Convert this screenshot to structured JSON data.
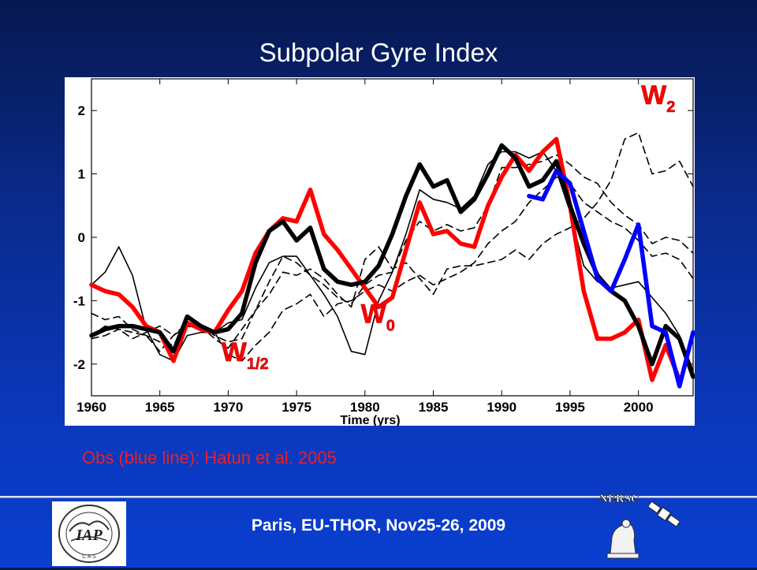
{
  "slide": {
    "title": "Subpolar Gyre Index",
    "footnote": "Obs (blue line): Hatun et al. 2005",
    "footer": "Paris, EU-THOR, Nov25-26, 2009",
    "logos": {
      "left": {
        "icon": "iap-cas-emblem-icon",
        "text": "IAP"
      },
      "right": {
        "icon": "nersc-bear-satellite-icon",
        "text": "NERSC"
      }
    }
  },
  "chart_data": {
    "type": "line",
    "title": "Subpolar Gyre Index",
    "xlabel": "Time (yrs)",
    "ylabel": "",
    "xlim": [
      1960,
      2004
    ],
    "ylim": [
      -2.5,
      2.5
    ],
    "xticks": [
      1960,
      1965,
      1970,
      1975,
      1980,
      1985,
      1990,
      1995,
      2000
    ],
    "yticks": [
      -2,
      -1,
      0,
      1,
      2
    ],
    "annotations": [
      {
        "label": "W",
        "sub": "2",
        "x": 2000.2,
        "y": 2.1
      },
      {
        "label": "W",
        "sub": "0",
        "x": 1979.7,
        "y": -1.35
      },
      {
        "label": "W",
        "sub": "1/2",
        "x": 1969.5,
        "y": -1.95
      }
    ],
    "colors": {
      "red": "#ff0000",
      "blue": "#0000ff",
      "black": "#000000"
    },
    "series": [
      {
        "color": "#ff0000",
        "width": 5.5,
        "style": "solid",
        "x": [
          1960,
          1961,
          1962,
          1963,
          1964,
          1965,
          1966,
          1967,
          1968,
          1969,
          1970,
          1971,
          1972,
          1973,
          1974,
          1975,
          1976,
          1977,
          1978,
          1979,
          1980,
          1981,
          1982,
          1983,
          1984,
          1985,
          1986,
          1987,
          1988,
          1989,
          1990,
          1991,
          1992,
          1993,
          1994,
          1995,
          1996,
          1997,
          1998,
          1999,
          2000,
          2001,
          2002,
          2003
        ],
        "y": [
          -0.75,
          -0.85,
          -0.9,
          -1.1,
          -1.4,
          -1.5,
          -1.95,
          -1.35,
          -1.45,
          -1.5,
          -1.15,
          -0.85,
          -0.25,
          0.1,
          0.3,
          0.25,
          0.75,
          0.05,
          -0.2,
          -0.5,
          -0.8,
          -1.1,
          -0.95,
          -0.2,
          0.55,
          0.05,
          0.1,
          -0.1,
          -0.15,
          0.5,
          0.95,
          1.3,
          1.05,
          1.35,
          1.55,
          0.5,
          -0.85,
          -1.6,
          -1.6,
          -1.5,
          -1.3,
          -2.25,
          -1.7,
          -2.25
        ]
      },
      {
        "color": "#000000",
        "width": 5.5,
        "style": "solid",
        "x": [
          1960,
          1961,
          1962,
          1963,
          1964,
          1965,
          1966,
          1967,
          1968,
          1969,
          1970,
          1971,
          1972,
          1973,
          1974,
          1975,
          1976,
          1977,
          1978,
          1979,
          1980,
          1981,
          1982,
          1983,
          1984,
          1985,
          1986,
          1987,
          1988,
          1989,
          1990,
          1991,
          1992,
          1993,
          1994,
          1995,
          1996,
          1997,
          1998,
          1999,
          2000,
          2001,
          2002,
          2003,
          2004
        ],
        "y": [
          -1.55,
          -1.45,
          -1.4,
          -1.4,
          -1.45,
          -1.5,
          -1.8,
          -1.25,
          -1.4,
          -1.5,
          -1.45,
          -1.2,
          -0.4,
          0.1,
          0.25,
          -0.05,
          0.15,
          -0.5,
          -0.7,
          -0.75,
          -0.7,
          -0.45,
          0.05,
          0.65,
          1.15,
          0.8,
          0.9,
          0.4,
          0.6,
          1.0,
          1.45,
          1.25,
          0.8,
          0.9,
          1.2,
          0.5,
          -0.1,
          -0.6,
          -0.85,
          -1.0,
          -1.4,
          -2.0,
          -1.4,
          -1.6,
          -2.2
        ]
      },
      {
        "color": "#0000ff",
        "width": 5.5,
        "style": "solid",
        "x": [
          1992,
          1993,
          1994,
          1995,
          1996,
          1997,
          1998,
          1999,
          2000,
          2001,
          2002,
          2003,
          2004
        ],
        "y": [
          0.65,
          0.6,
          1.05,
          0.85,
          0.1,
          -0.65,
          -0.85,
          -0.35,
          0.2,
          -1.4,
          -1.5,
          -2.35,
          -1.5
        ]
      },
      {
        "color": "#000000",
        "width": 1.6,
        "style": "solid",
        "x": [
          1960,
          1961,
          1962,
          1963,
          1964,
          1965,
          1966,
          1967,
          1968,
          1969,
          1970,
          1971,
          1972,
          1973,
          1974,
          1975,
          1976,
          1977,
          1978,
          1979,
          1980,
          1981,
          1982,
          1983,
          1984,
          1985,
          1986,
          1987,
          1988,
          1989,
          1990,
          1991,
          1992,
          1993,
          1994,
          1995,
          1996,
          1997,
          1998,
          1999,
          2000,
          2001,
          2002,
          2003,
          2004
        ],
        "y": [
          -0.75,
          -0.55,
          -0.15,
          -0.6,
          -1.45,
          -1.85,
          -1.95,
          -1.55,
          -1.5,
          -1.5,
          -1.35,
          -1.3,
          -0.8,
          -0.4,
          -0.3,
          -0.3,
          -0.6,
          -0.9,
          -1.25,
          -1.8,
          -1.85,
          -1.0,
          -0.55,
          0.05,
          0.75,
          0.6,
          0.55,
          0.45,
          0.65,
          1.15,
          1.35,
          1.35,
          1.25,
          1.35,
          1.05,
          0.4,
          -0.45,
          -0.7,
          -0.8,
          -0.75,
          -0.7,
          -0.95,
          -1.2,
          -1.55,
          -2.1
        ]
      },
      {
        "color": "#000000",
        "width": 1.6,
        "style": "dashed",
        "x": [
          1960,
          1961,
          1962,
          1963,
          1964,
          1965,
          1966,
          1967,
          1968,
          1969,
          1970,
          1971,
          1972,
          1973,
          1974,
          1975,
          1976,
          1977,
          1978,
          1979,
          1980,
          1981,
          1982,
          1983,
          1984,
          1985,
          1986,
          1987,
          1988,
          1989,
          1990,
          1991,
          1992,
          1993,
          1994,
          1995,
          1996,
          1997,
          1998,
          1999,
          2000,
          2001,
          2002,
          2003,
          2004
        ],
        "y": [
          -1.55,
          -1.4,
          -1.45,
          -1.6,
          -1.5,
          -1.4,
          -1.55,
          -1.4,
          -1.45,
          -1.5,
          -1.85,
          -1.95,
          -1.7,
          -1.5,
          -1.15,
          -1.05,
          -0.9,
          -1.25,
          -1.05,
          -1.0,
          -0.85,
          -0.75,
          -0.85,
          -0.7,
          -0.6,
          -0.75,
          -0.65,
          -0.55,
          -0.4,
          -0.1,
          0.1,
          0.25,
          0.55,
          0.75,
          0.95,
          0.85,
          0.55,
          0.4,
          0.25,
          0.15,
          -0.05,
          -0.3,
          -0.25,
          -0.35,
          -0.65
        ]
      },
      {
        "color": "#000000",
        "width": 1.6,
        "style": "dashed",
        "x": [
          1960,
          1961,
          1962,
          1963,
          1964,
          1965,
          1966,
          1967,
          1968,
          1969,
          1970,
          1971,
          1972,
          1973,
          1974,
          1975,
          1976,
          1977,
          1978,
          1979,
          1980,
          1981,
          1982,
          1983,
          1984,
          1985,
          1986,
          1987,
          1988,
          1989,
          1990,
          1991,
          1992,
          1993,
          1994,
          1995,
          1996,
          1997,
          1998,
          1999,
          2000,
          2001,
          2002,
          2003,
          2004
        ],
        "y": [
          -1.6,
          -1.55,
          -1.45,
          -1.5,
          -1.55,
          -1.8,
          -1.55,
          -1.35,
          -1.4,
          -1.6,
          -1.75,
          -1.45,
          -1.15,
          -0.9,
          -0.55,
          -0.6,
          -0.5,
          -0.65,
          -0.9,
          -1.1,
          -0.35,
          -0.15,
          -0.5,
          -0.4,
          -0.65,
          -0.9,
          -0.5,
          -0.45,
          -0.45,
          -0.4,
          -0.35,
          -0.2,
          -0.35,
          -0.1,
          0.05,
          0.15,
          0.3,
          0.55,
          0.9,
          1.55,
          1.65,
          1.0,
          1.05,
          1.2,
          0.8
        ]
      },
      {
        "color": "#000000",
        "width": 1.6,
        "style": "dashed",
        "x": [
          1960,
          1961,
          1962,
          1963,
          1964,
          1965,
          1966,
          1967,
          1968,
          1969,
          1970,
          1971,
          1972,
          1973,
          1974,
          1975,
          1976,
          1977,
          1978,
          1979,
          1980,
          1981,
          1982,
          1983,
          1984,
          1985,
          1986,
          1987,
          1988,
          1989,
          1990,
          1991,
          1992,
          1993,
          1994,
          1995,
          1996,
          1997,
          1998,
          1999,
          2000,
          2001,
          2002,
          2003,
          2004
        ],
        "y": [
          -1.2,
          -1.3,
          -1.25,
          -1.45,
          -1.55,
          -1.65,
          -1.7,
          -1.35,
          -1.4,
          -1.55,
          -1.65,
          -1.6,
          -1.15,
          -0.7,
          -0.3,
          -0.4,
          -0.6,
          -0.75,
          -0.95,
          -1.05,
          -0.75,
          -0.6,
          -0.55,
          -0.05,
          0.25,
          0.1,
          0.2,
          0.1,
          0.15,
          0.5,
          1.1,
          1.1,
          1.15,
          1.2,
          1.3,
          1.15,
          0.95,
          0.85,
          0.55,
          0.35,
          0.2,
          -0.1,
          0.0,
          -0.05,
          -0.25
        ]
      }
    ]
  }
}
